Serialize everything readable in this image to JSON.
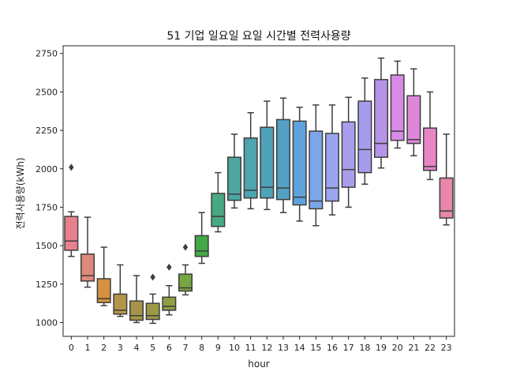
{
  "chart_data": {
    "type": "box",
    "title": "51 기업 일요일 요일 시간별 전력사용량",
    "xlabel": "hour",
    "ylabel": "전력사용량(kWh)",
    "ylim": [
      910,
      2800
    ],
    "yticks": [
      1000,
      1250,
      1500,
      1750,
      2000,
      2250,
      2500,
      2750
    ],
    "categories": [
      "0",
      "1",
      "2",
      "3",
      "4",
      "5",
      "6",
      "7",
      "8",
      "9",
      "10",
      "11",
      "12",
      "13",
      "14",
      "15",
      "16",
      "17",
      "18",
      "19",
      "20",
      "21",
      "22",
      "23"
    ],
    "boxes": [
      {
        "min": 1430,
        "q1": 1470,
        "median": 1530,
        "q3": 1690,
        "max": 1720,
        "outliers": [
          2010
        ]
      },
      {
        "min": 1230,
        "q1": 1270,
        "median": 1305,
        "q3": 1445,
        "max": 1685,
        "outliers": []
      },
      {
        "min": 1110,
        "q1": 1130,
        "median": 1155,
        "q3": 1285,
        "max": 1490,
        "outliers": []
      },
      {
        "min": 1040,
        "q1": 1055,
        "median": 1080,
        "q3": 1185,
        "max": 1375,
        "outliers": []
      },
      {
        "min": 1000,
        "q1": 1015,
        "median": 1045,
        "q3": 1140,
        "max": 1305,
        "outliers": []
      },
      {
        "min": 995,
        "q1": 1020,
        "median": 1045,
        "q3": 1125,
        "max": 1185,
        "outliers": [
          1295
        ]
      },
      {
        "min": 1050,
        "q1": 1080,
        "median": 1105,
        "q3": 1165,
        "max": 1240,
        "outliers": [
          1360
        ]
      },
      {
        "min": 1180,
        "q1": 1205,
        "median": 1225,
        "q3": 1315,
        "max": 1375,
        "outliers": [
          1490
        ]
      },
      {
        "min": 1385,
        "q1": 1430,
        "median": 1465,
        "q3": 1565,
        "max": 1715,
        "outliers": []
      },
      {
        "min": 1590,
        "q1": 1625,
        "median": 1690,
        "q3": 1840,
        "max": 1975,
        "outliers": []
      },
      {
        "min": 1745,
        "q1": 1795,
        "median": 1835,
        "q3": 2075,
        "max": 2225,
        "outliers": []
      },
      {
        "min": 1740,
        "q1": 1810,
        "median": 1860,
        "q3": 2200,
        "max": 2365,
        "outliers": []
      },
      {
        "min": 1735,
        "q1": 1810,
        "median": 1880,
        "q3": 2270,
        "max": 2440,
        "outliers": []
      },
      {
        "min": 1715,
        "q1": 1800,
        "median": 1875,
        "q3": 2320,
        "max": 2460,
        "outliers": []
      },
      {
        "min": 1660,
        "q1": 1765,
        "median": 1815,
        "q3": 2310,
        "max": 2400,
        "outliers": []
      },
      {
        "min": 1630,
        "q1": 1740,
        "median": 1790,
        "q3": 2245,
        "max": 2415,
        "outliers": []
      },
      {
        "min": 1700,
        "q1": 1790,
        "median": 1875,
        "q3": 2230,
        "max": 2415,
        "outliers": []
      },
      {
        "min": 1750,
        "q1": 1880,
        "median": 1995,
        "q3": 2305,
        "max": 2465,
        "outliers": []
      },
      {
        "min": 1900,
        "q1": 1975,
        "median": 2125,
        "q3": 2440,
        "max": 2590,
        "outliers": []
      },
      {
        "min": 2005,
        "q1": 2075,
        "median": 2165,
        "q3": 2580,
        "max": 2720,
        "outliers": []
      },
      {
        "min": 2135,
        "q1": 2185,
        "median": 2245,
        "q3": 2610,
        "max": 2700,
        "outliers": []
      },
      {
        "min": 2085,
        "q1": 2165,
        "median": 2190,
        "q3": 2475,
        "max": 2650,
        "outliers": []
      },
      {
        "min": 1930,
        "q1": 1990,
        "median": 2015,
        "q3": 2265,
        "max": 2500,
        "outliers": []
      },
      {
        "min": 1635,
        "q1": 1680,
        "median": 1725,
        "q3": 1940,
        "max": 2225,
        "outliers": []
      }
    ],
    "colors": [
      "#E8818E",
      "#DE8A7C",
      "#D49240",
      "#B5954A",
      "#A69548",
      "#9B9A45",
      "#909E44",
      "#78A543",
      "#43A848",
      "#49A884",
      "#4CA7A0",
      "#4EA4AF",
      "#4FA2B8",
      "#53A0C4",
      "#5EA2DD",
      "#7DA6E8",
      "#9AA5EE",
      "#A99DEC",
      "#A59CEB",
      "#B594E8",
      "#D98AE6",
      "#DE87DA",
      "#E785C5",
      "#E886AC"
    ],
    "grid": false,
    "legend": "none"
  }
}
